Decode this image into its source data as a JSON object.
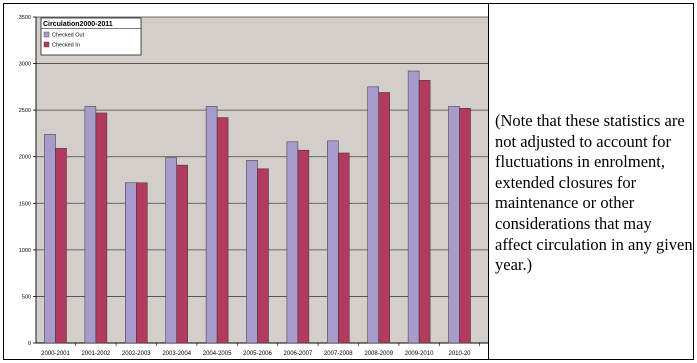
{
  "chart_data": {
    "type": "bar",
    "title": "Circulation2000-2011",
    "categories": [
      "2000-2001",
      "2001-2002",
      "2002-2003",
      "2003-2004",
      "2004-2005",
      "2005-2006",
      "2006-2007",
      "2007-2008",
      "2008-2009",
      "2009-2010",
      "2010-20"
    ],
    "series": [
      {
        "name": "Checked Out",
        "values": [
          2240,
          2540,
          1720,
          1990,
          2540,
          1960,
          2160,
          2170,
          2750,
          2920,
          2540
        ]
      },
      {
        "name": "Checked In",
        "values": [
          2090,
          2470,
          1720,
          1910,
          2420,
          1870,
          2070,
          2040,
          2690,
          2820,
          2520
        ]
      }
    ],
    "y_ticks": [
      "0",
      "500",
      "1000",
      "1500",
      "2000",
      "2500",
      "3000",
      "3500"
    ],
    "ylim": [
      0,
      3500
    ],
    "grid": true,
    "legend_position": "top-left",
    "colors": {
      "plot_bg": "#D4CECA",
      "checked_out": "#A79BCB",
      "checked_in": "#B23A5E",
      "grid": "#444444"
    }
  },
  "note": "(Note that these statistics are not adjusted to account for fluctuations in enrolment, extended closures for maintenance or other considerations that may affect circulation in any given year.)"
}
